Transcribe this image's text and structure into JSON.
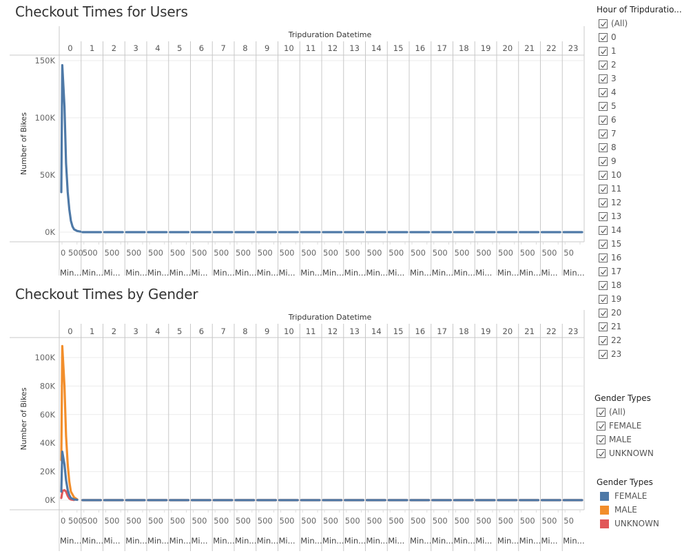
{
  "colors": {
    "female": "#4e79a7",
    "male": "#f28e2b",
    "unknown": "#e15759",
    "single_series": "#4e79a7",
    "gridline": "#ebebeb",
    "divider": "#c8c8c8"
  },
  "top_chart": {
    "title": "Checkout Times for Users",
    "header_title": "Tripduration Datetime",
    "y_axis_label": "Number of Bikes",
    "y_ticks": [
      "150K",
      "100K",
      "50K",
      "0K"
    ],
    "columns": [
      "0",
      "1",
      "2",
      "3",
      "4",
      "5",
      "6",
      "7",
      "8",
      "9",
      "10",
      "11",
      "12",
      "13",
      "14",
      "15",
      "16",
      "17",
      "18",
      "19",
      "20",
      "21",
      "22",
      "23"
    ],
    "x_tick_labels": [
      "0 500",
      "500",
      "500",
      "500",
      "500",
      "500",
      "500",
      "500",
      "500",
      "500",
      "500",
      "500",
      "500",
      "500",
      "500",
      "500",
      "500",
      "500",
      "500",
      "500",
      "500",
      "500",
      "500",
      "50"
    ],
    "x_footer_labels": [
      "Min...",
      "Min...",
      "Mi...",
      "Min...",
      "Min...",
      "Min...",
      "Mi...",
      "Min...",
      "Min...",
      "Min...",
      "Mi...",
      "Min...",
      "Min...",
      "Min...",
      "Min...",
      "Mi...",
      "Min...",
      "Min...",
      "Min...",
      "Mi...",
      "Min...",
      "Min...",
      "Mi...",
      "Min..."
    ]
  },
  "bottom_chart": {
    "title": "Checkout Times by Gender",
    "header_title": "Tripduration Datetime",
    "y_axis_label": "Number of Bikes",
    "y_ticks": [
      "100K",
      "80K",
      "60K",
      "40K",
      "20K",
      "0K"
    ],
    "columns": [
      "0",
      "1",
      "2",
      "3",
      "4",
      "5",
      "6",
      "7",
      "8",
      "9",
      "10",
      "11",
      "12",
      "13",
      "14",
      "15",
      "16",
      "17",
      "18",
      "19",
      "20",
      "21",
      "22",
      "23"
    ],
    "x_tick_labels": [
      "0 500",
      "500",
      "500",
      "500",
      "500",
      "500",
      "500",
      "500",
      "500",
      "500",
      "500",
      "500",
      "500",
      "500",
      "500",
      "500",
      "500",
      "500",
      "500",
      "500",
      "500",
      "500",
      "500",
      "50"
    ],
    "x_footer_labels": [
      "Min...",
      "Min...",
      "Mi...",
      "Min...",
      "Min...",
      "Min...",
      "Mi...",
      "Min...",
      "Min...",
      "Min...",
      "Mi...",
      "Min...",
      "Min...",
      "Min...",
      "Min...",
      "Mi...",
      "Min...",
      "Min...",
      "Min...",
      "Mi...",
      "Min...",
      "Min...",
      "Mi...",
      "Min..."
    ]
  },
  "hour_filter": {
    "title": "Hour of Tripduratio...",
    "items": [
      "(All)",
      "0",
      "1",
      "2",
      "3",
      "4",
      "5",
      "6",
      "7",
      "8",
      "9",
      "10",
      "11",
      "12",
      "13",
      "14",
      "15",
      "16",
      "17",
      "18",
      "19",
      "20",
      "21",
      "22",
      "23"
    ]
  },
  "gender_filter": {
    "title": "Gender Types",
    "items": [
      "(All)",
      "FEMALE",
      "MALE",
      "UNKNOWN"
    ]
  },
  "gender_legend": {
    "title": "Gender Types",
    "items": [
      {
        "label": "FEMALE",
        "color": "#4e79a7"
      },
      {
        "label": "MALE",
        "color": "#f28e2b"
      },
      {
        "label": "UNKNOWN",
        "color": "#e15759"
      }
    ]
  },
  "chart_data": [
    {
      "type": "line",
      "title": "Checkout Times for Users",
      "xlabel": "Tripduration Datetime (hour panels 0–23, minutes within hour)",
      "ylabel": "Number of Bikes",
      "ylim": [
        0,
        150000
      ],
      "y_ticks": [
        0,
        50000,
        100000,
        150000
      ],
      "panels": [
        "0",
        "1",
        "2",
        "3",
        "4",
        "5",
        "6",
        "7",
        "8",
        "9",
        "10",
        "11",
        "12",
        "13",
        "14",
        "15",
        "16",
        "17",
        "18",
        "19",
        "20",
        "21",
        "22",
        "23"
      ],
      "grid": true,
      "series": [
        {
          "name": "Number of Bikes",
          "panel_0_points": [
            [
              0,
              35000
            ],
            [
              3,
              146000
            ],
            [
              10,
              110000
            ],
            [
              15,
              60000
            ],
            [
              20,
              35000
            ],
            [
              25,
              20000
            ],
            [
              30,
              10000
            ],
            [
              35,
              5000
            ],
            [
              40,
              2500
            ],
            [
              50,
              1000
            ],
            [
              60,
              500
            ]
          ],
          "panels_1_to_23": "near 0"
        }
      ]
    },
    {
      "type": "line",
      "title": "Checkout Times by Gender",
      "xlabel": "Tripduration Datetime (hour panels 0–23, minutes within hour)",
      "ylabel": "Number of Bikes",
      "ylim": [
        0,
        110000
      ],
      "y_ticks": [
        0,
        20000,
        40000,
        60000,
        80000,
        100000
      ],
      "panels": [
        "0",
        "1",
        "2",
        "3",
        "4",
        "5",
        "6",
        "7",
        "8",
        "9",
        "10",
        "11",
        "12",
        "13",
        "14",
        "15",
        "16",
        "17",
        "18",
        "19",
        "20",
        "21",
        "22",
        "23"
      ],
      "grid": true,
      "legend": {
        "position": "right",
        "entries": [
          "FEMALE",
          "MALE",
          "UNKNOWN"
        ]
      },
      "series": [
        {
          "name": "MALE",
          "color": "#f28e2b",
          "panel_0_points": [
            [
              0,
              28000
            ],
            [
              3,
              108000
            ],
            [
              10,
              80000
            ],
            [
              15,
              45000
            ],
            [
              20,
              25000
            ],
            [
              25,
              13000
            ],
            [
              30,
              6000
            ],
            [
              40,
              2000
            ],
            [
              50,
              500
            ]
          ],
          "panels_1_to_23": "near 0"
        },
        {
          "name": "FEMALE",
          "color": "#4e79a7",
          "panel_0_points": [
            [
              0,
              6000
            ],
            [
              3,
              34000
            ],
            [
              10,
              25000
            ],
            [
              15,
              14000
            ],
            [
              20,
              7000
            ],
            [
              25,
              3500
            ],
            [
              30,
              1500
            ],
            [
              40,
              500
            ],
            [
              50,
              200
            ]
          ],
          "panels_1_to_23": "near 0"
        },
        {
          "name": "UNKNOWN",
          "color": "#e15759",
          "panel_0_points": [
            [
              0,
              1500
            ],
            [
              4,
              6500
            ],
            [
              10,
              7000
            ],
            [
              15,
              6000
            ],
            [
              20,
              3000
            ],
            [
              25,
              1200
            ],
            [
              30,
              500
            ],
            [
              40,
              100
            ]
          ],
          "panels_1_to_23": "near 0"
        }
      ]
    }
  ]
}
